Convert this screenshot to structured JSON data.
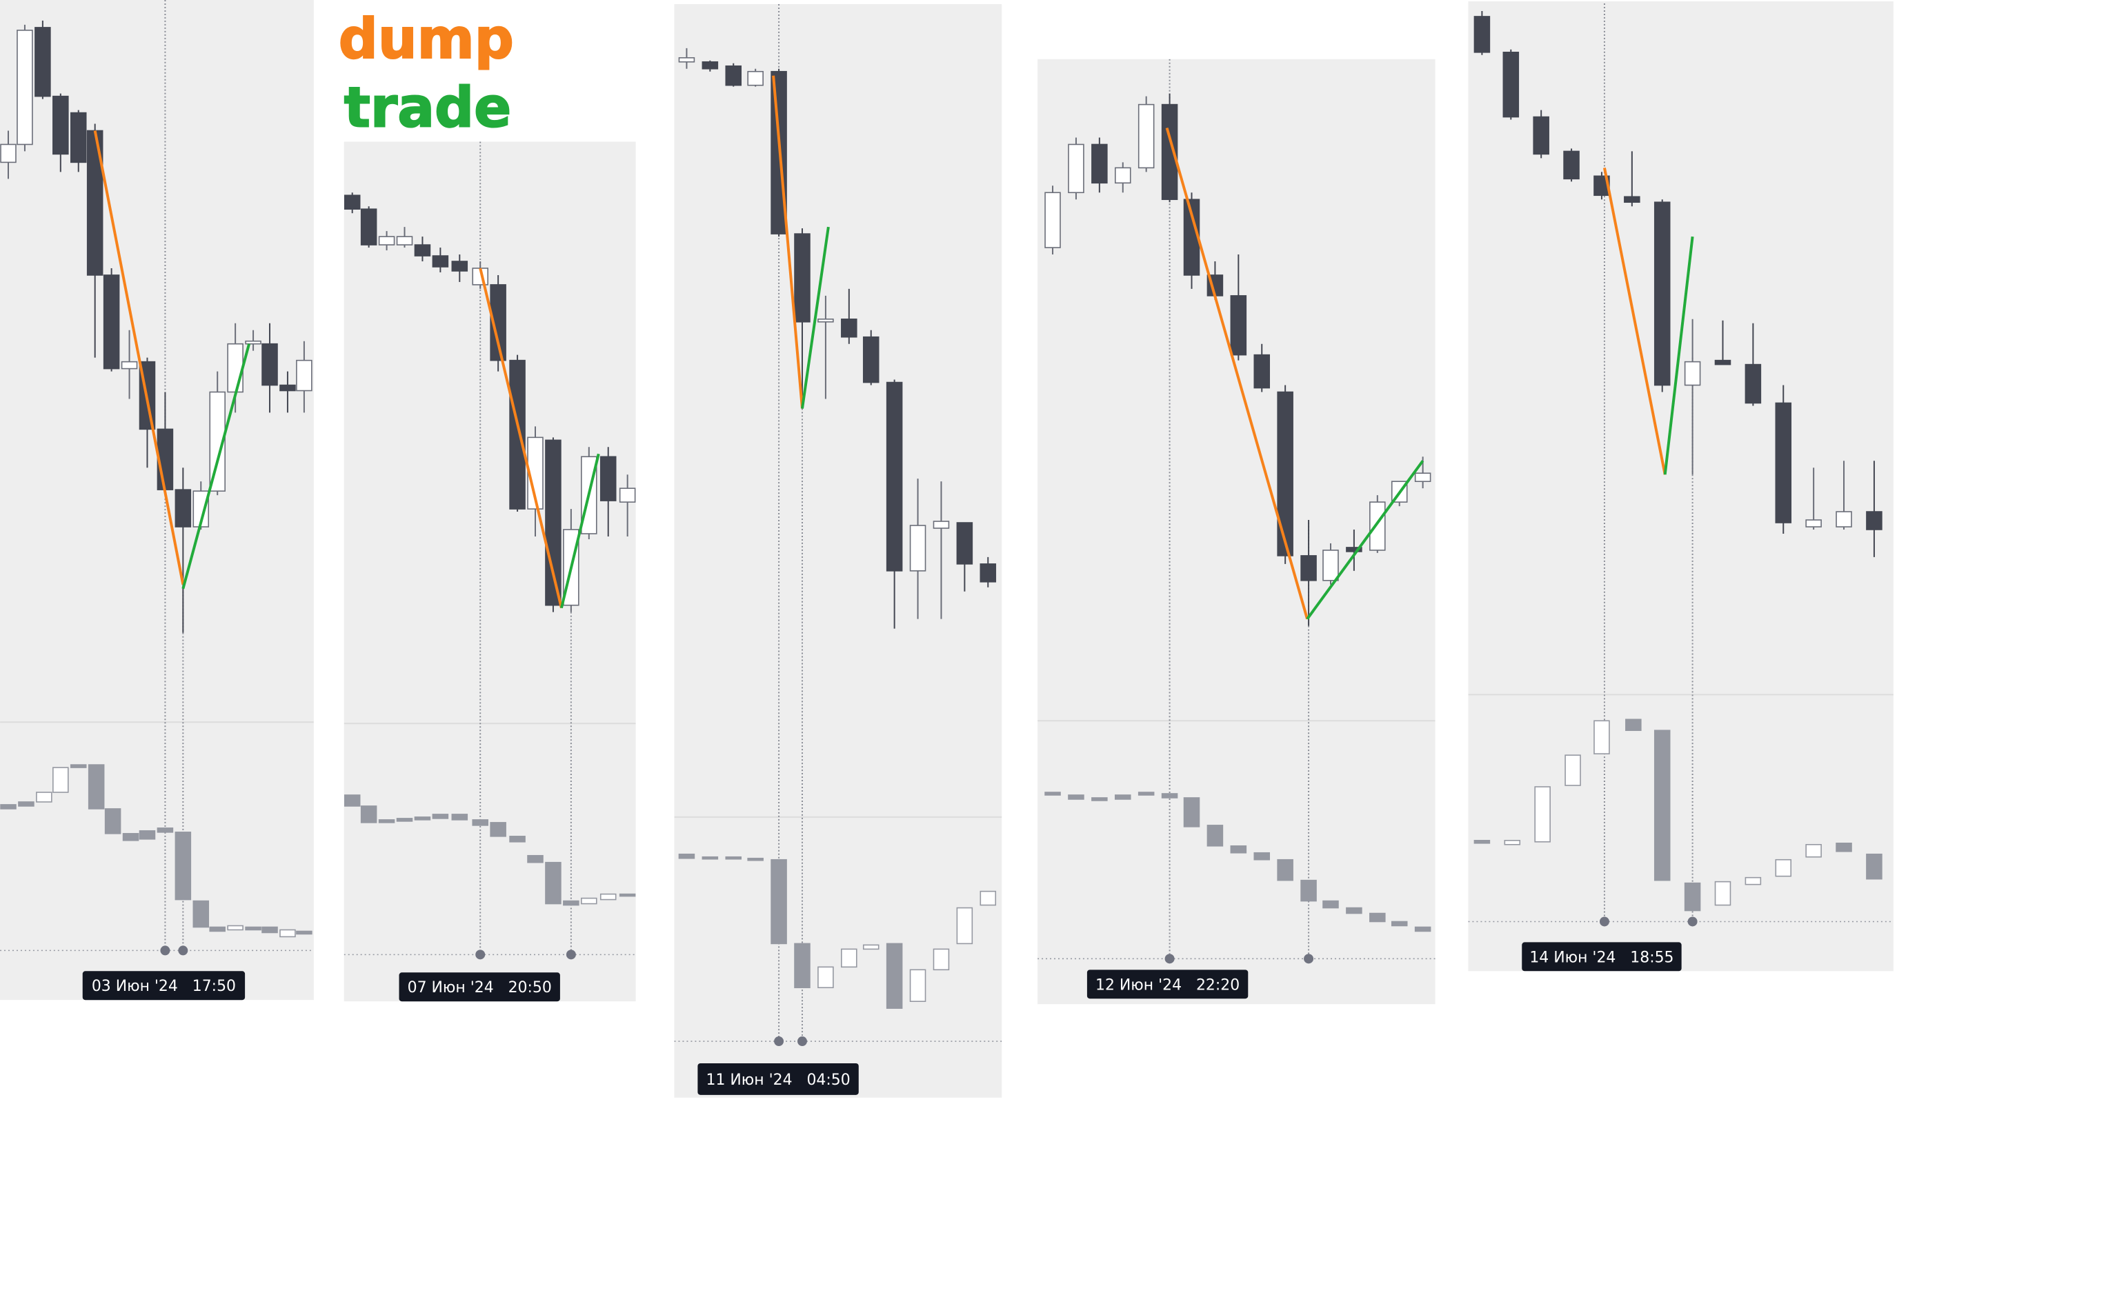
{
  "annotations": {
    "dump": "dump",
    "trade": "trade"
  },
  "panels": [
    {
      "time_label": "03 Июн '24   17:50"
    },
    {
      "time_label": "07 Июн '24   20:50"
    },
    {
      "time_label": "11 Июн '24   04:50"
    },
    {
      "time_label": "12 Июн '24   22:20"
    },
    {
      "time_label": "14 Июн '24   18:55"
    }
  ]
}
